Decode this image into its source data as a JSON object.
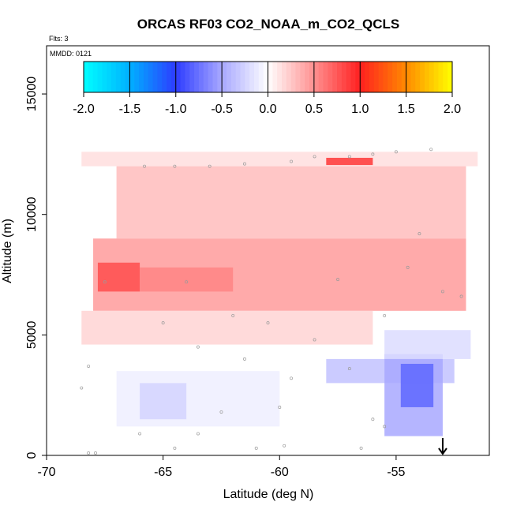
{
  "chart_data": {
    "type": "heatmap",
    "title": "ORCAS RF03 CO2_NOAA_m_CO2_QCLS",
    "flights_note": "Flts: 3",
    "date_note": "MMDD: 0121",
    "xlabel": "Latitude (deg N)",
    "ylabel": "Altitude (m)",
    "xlim": [
      -70,
      -51
    ],
    "ylim": [
      0,
      17000
    ],
    "xticks": [
      "-70",
      "-65",
      "-60",
      "-55"
    ],
    "xtick_values": [
      -70,
      -65,
      -60,
      -55
    ],
    "yticks": [
      "0",
      "5000",
      "10000",
      "15000"
    ],
    "ytick_values": [
      0,
      5000,
      10000,
      15000
    ],
    "colorbar": {
      "range": [
        -2.0,
        2.0
      ],
      "ticks": [
        "-2.0",
        "-1.5",
        "-1.0",
        "-0.5",
        "0.0",
        "0.5",
        "1.0",
        "1.5",
        "2.0"
      ],
      "tick_values": [
        -2.0,
        -1.5,
        -1.0,
        -0.5,
        0.0,
        0.5,
        1.0,
        1.5,
        2.0
      ],
      "color_stops": [
        {
          "v": -2.0,
          "c": "#00ffff"
        },
        {
          "v": -1.5,
          "c": "#00b0ff"
        },
        {
          "v": -1.0,
          "c": "#2d3cff"
        },
        {
          "v": -0.5,
          "c": "#a8a8ff"
        },
        {
          "v": 0.0,
          "c": "#ffffff"
        },
        {
          "v": 0.5,
          "c": "#ff9090"
        },
        {
          "v": 1.0,
          "c": "#ff2020"
        },
        {
          "v": 1.5,
          "c": "#ff8a00"
        },
        {
          "v": 2.0,
          "c": "#ffff00"
        }
      ]
    },
    "field_regions": [
      {
        "lat": [
          -68.5,
          -51.5
        ],
        "alt": [
          12000,
          12600
        ],
        "value": 0.15
      },
      {
        "lat": [
          -67.0,
          -52.0
        ],
        "alt": [
          9000,
          12000
        ],
        "value": 0.3
      },
      {
        "lat": [
          -68.0,
          -52.0
        ],
        "alt": [
          6000,
          9000
        ],
        "value": 0.45
      },
      {
        "lat": [
          -67.8,
          -66.0
        ],
        "alt": [
          6800,
          8000
        ],
        "value": 0.8
      },
      {
        "lat": [
          -66.0,
          -62.0
        ],
        "alt": [
          6800,
          7800
        ],
        "value": 0.55
      },
      {
        "lat": [
          -68.5,
          -56.0
        ],
        "alt": [
          4600,
          6000
        ],
        "value": 0.2
      },
      {
        "lat": [
          -67.0,
          -60.0
        ],
        "alt": [
          1200,
          3500
        ],
        "value": -0.1
      },
      {
        "lat": [
          -66.0,
          -64.0
        ],
        "alt": [
          1500,
          3000
        ],
        "value": -0.25
      },
      {
        "lat": [
          -58.0,
          -52.5
        ],
        "alt": [
          3000,
          4000
        ],
        "value": -0.35
      },
      {
        "lat": [
          -55.5,
          -53.0
        ],
        "alt": [
          800,
          4200
        ],
        "value": -0.5
      },
      {
        "lat": [
          -54.8,
          -53.4
        ],
        "alt": [
          2000,
          3800
        ],
        "value": -0.8
      },
      {
        "lat": [
          -55.5,
          -51.8
        ],
        "alt": [
          4000,
          5200
        ],
        "value": -0.2
      },
      {
        "lat": [
          -58.0,
          -56.0
        ],
        "alt": [
          12050,
          12350
        ],
        "value": 0.9
      }
    ],
    "sample_points": [
      [
        -67.5,
        7200
      ],
      [
        -68.2,
        3700
      ],
      [
        -68.5,
        2800
      ],
      [
        -68.2,
        100
      ],
      [
        -67.9,
        100
      ],
      [
        -65.8,
        12000
      ],
      [
        -64.5,
        12000
      ],
      [
        -63.0,
        12000
      ],
      [
        -61.5,
        12100
      ],
      [
        -59.5,
        12200
      ],
      [
        -58.5,
        12400
      ],
      [
        -57.0,
        12400
      ],
      [
        -56.0,
        12500
      ],
      [
        -55.0,
        12600
      ],
      [
        -53.5,
        12700
      ],
      [
        -65.0,
        5500
      ],
      [
        -63.5,
        4500
      ],
      [
        -62.0,
        5800
      ],
      [
        -60.5,
        5500
      ],
      [
        -59.5,
        3200
      ],
      [
        -58.5,
        4800
      ],
      [
        -57.0,
        3600
      ],
      [
        -56.0,
        1500
      ],
      [
        -55.5,
        5800
      ],
      [
        -54.5,
        7800
      ],
      [
        -54.0,
        9200
      ],
      [
        -55.5,
        1200
      ],
      [
        -56.5,
        300
      ],
      [
        -59.8,
        400
      ],
      [
        -61.0,
        300
      ],
      [
        -62.5,
        1800
      ],
      [
        -63.5,
        900
      ],
      [
        -64.5,
        300
      ],
      [
        -66.0,
        900
      ],
      [
        -60.0,
        2000
      ],
      [
        -61.5,
        4000
      ],
      [
        -57.5,
        7300
      ],
      [
        -53.0,
        6800
      ],
      [
        -52.2,
        6600
      ],
      [
        -64.0,
        7200
      ]
    ],
    "annotation_arrow_lat": -53.0
  }
}
